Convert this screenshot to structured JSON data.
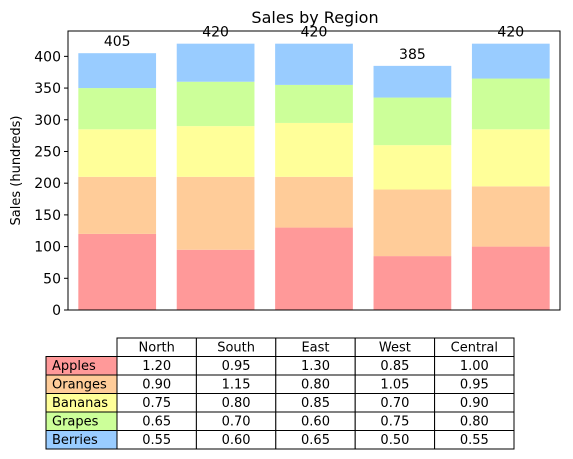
{
  "chart_data": {
    "type": "bar",
    "stacked": true,
    "title": "Sales by Region",
    "ylabel": "Sales (hundreds)",
    "xlabel": "",
    "ylim": [
      0,
      440
    ],
    "yticks": [
      0,
      50,
      100,
      150,
      200,
      250,
      300,
      350,
      400
    ],
    "grid": false,
    "categories": [
      "North",
      "South",
      "East",
      "West",
      "Central"
    ],
    "series": [
      {
        "name": "Apples",
        "color": "#ff9999",
        "values": [
          120,
          95,
          130,
          85,
          100
        ],
        "table_values": [
          "1.20",
          "0.95",
          "1.30",
          "0.85",
          "1.00"
        ]
      },
      {
        "name": "Oranges",
        "color": "#ffcc99",
        "values": [
          90,
          115,
          80,
          105,
          95
        ],
        "table_values": [
          "0.90",
          "1.15",
          "0.80",
          "1.05",
          "0.95"
        ]
      },
      {
        "name": "Bananas",
        "color": "#ffff99",
        "values": [
          75,
          80,
          85,
          70,
          90
        ],
        "table_values": [
          "0.75",
          "0.80",
          "0.85",
          "0.70",
          "0.90"
        ]
      },
      {
        "name": "Grapes",
        "color": "#ccff99",
        "values": [
          65,
          70,
          60,
          75,
          80
        ],
        "table_values": [
          "0.65",
          "0.70",
          "0.60",
          "0.75",
          "0.80"
        ]
      },
      {
        "name": "Berries",
        "color": "#99ccff",
        "values": [
          55,
          60,
          65,
          50,
          55
        ],
        "table_values": [
          "0.55",
          "0.60",
          "0.65",
          "0.50",
          "0.55"
        ]
      }
    ],
    "totals": [
      "405",
      "420",
      "420",
      "385",
      "420"
    ]
  }
}
